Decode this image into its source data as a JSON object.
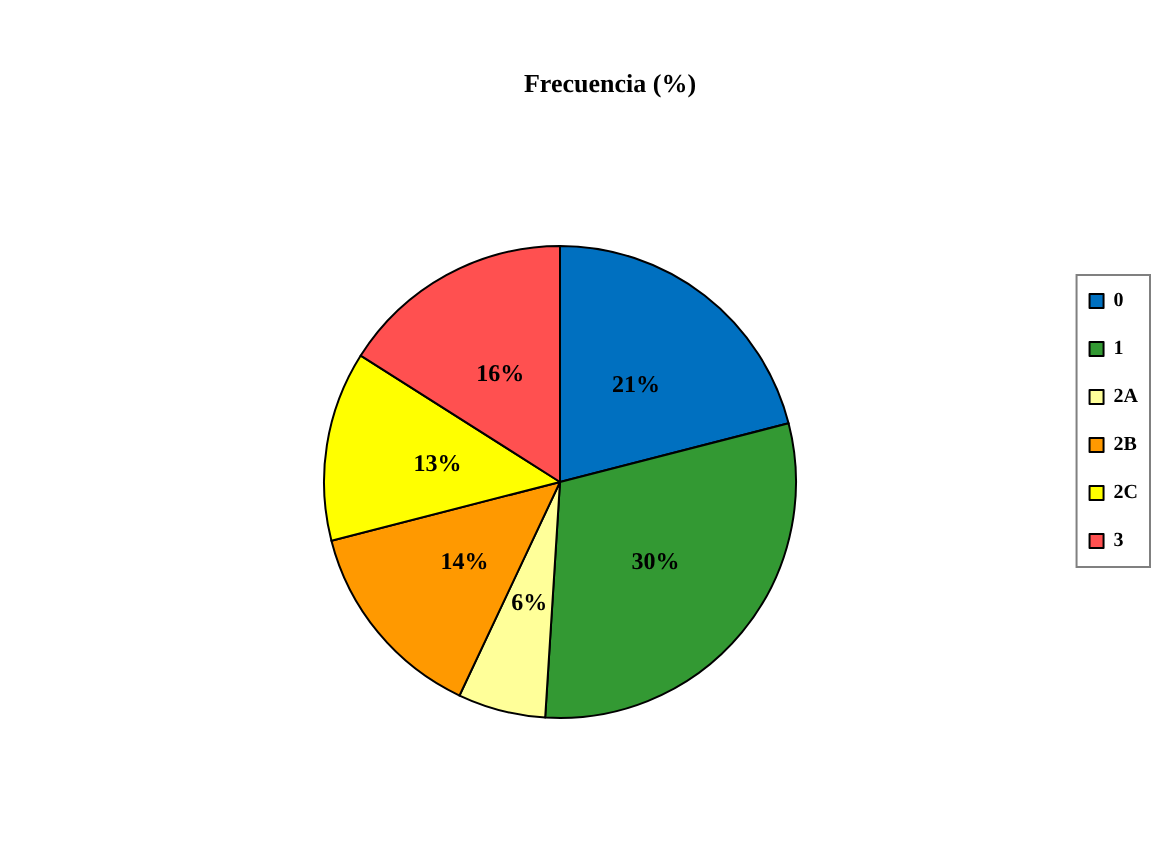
{
  "chart_data": {
    "type": "pie",
    "title": "Frecuencia (%)",
    "categories": [
      "0",
      "1",
      "2A",
      "2B",
      "2C",
      "3"
    ],
    "values": [
      21,
      30,
      6,
      14,
      13,
      16
    ],
    "colors": [
      "#0070c0",
      "#339933",
      "#ffff99",
      "#ff9900",
      "#ffff00",
      "#ff5050"
    ],
    "value_labels": [
      "21%",
      "30%",
      "6%",
      "14%",
      "13%",
      "16%"
    ],
    "legend": "right"
  }
}
